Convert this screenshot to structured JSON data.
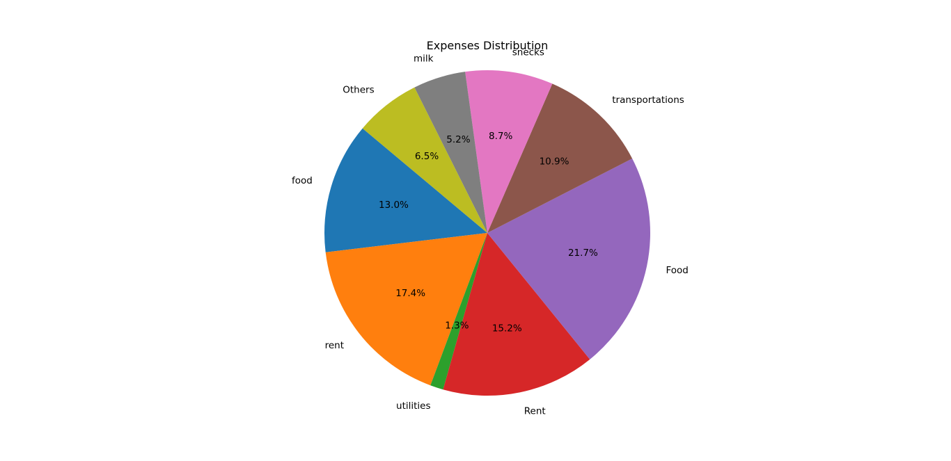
{
  "chart_data": {
    "type": "pie",
    "title": "Expenses Distribution",
    "start_angle_deg": 140,
    "direction": "counterclockwise",
    "slices": [
      {
        "label": "food",
        "value": 13.0,
        "pct_label": "13.0%",
        "color": "#1f77b4"
      },
      {
        "label": "rent",
        "value": 17.4,
        "pct_label": "17.4%",
        "color": "#ff7f0e"
      },
      {
        "label": "utilities",
        "value": 1.3,
        "pct_label": "1.3%",
        "color": "#2ca02c"
      },
      {
        "label": "Rent",
        "value": 15.2,
        "pct_label": "15.2%",
        "color": "#d62728"
      },
      {
        "label": "Food",
        "value": 21.7,
        "pct_label": "21.7%",
        "color": "#9467bd"
      },
      {
        "label": "transportations",
        "value": 10.9,
        "pct_label": "10.9%",
        "color": "#8c564b"
      },
      {
        "label": "snecks",
        "value": 8.7,
        "pct_label": "8.7%",
        "color": "#e377c2"
      },
      {
        "label": "milk",
        "value": 5.2,
        "pct_label": "5.2%",
        "color": "#7f7f7f"
      },
      {
        "label": "Others",
        "value": 6.5,
        "pct_label": "6.5%",
        "color": "#bcbd22"
      }
    ]
  }
}
